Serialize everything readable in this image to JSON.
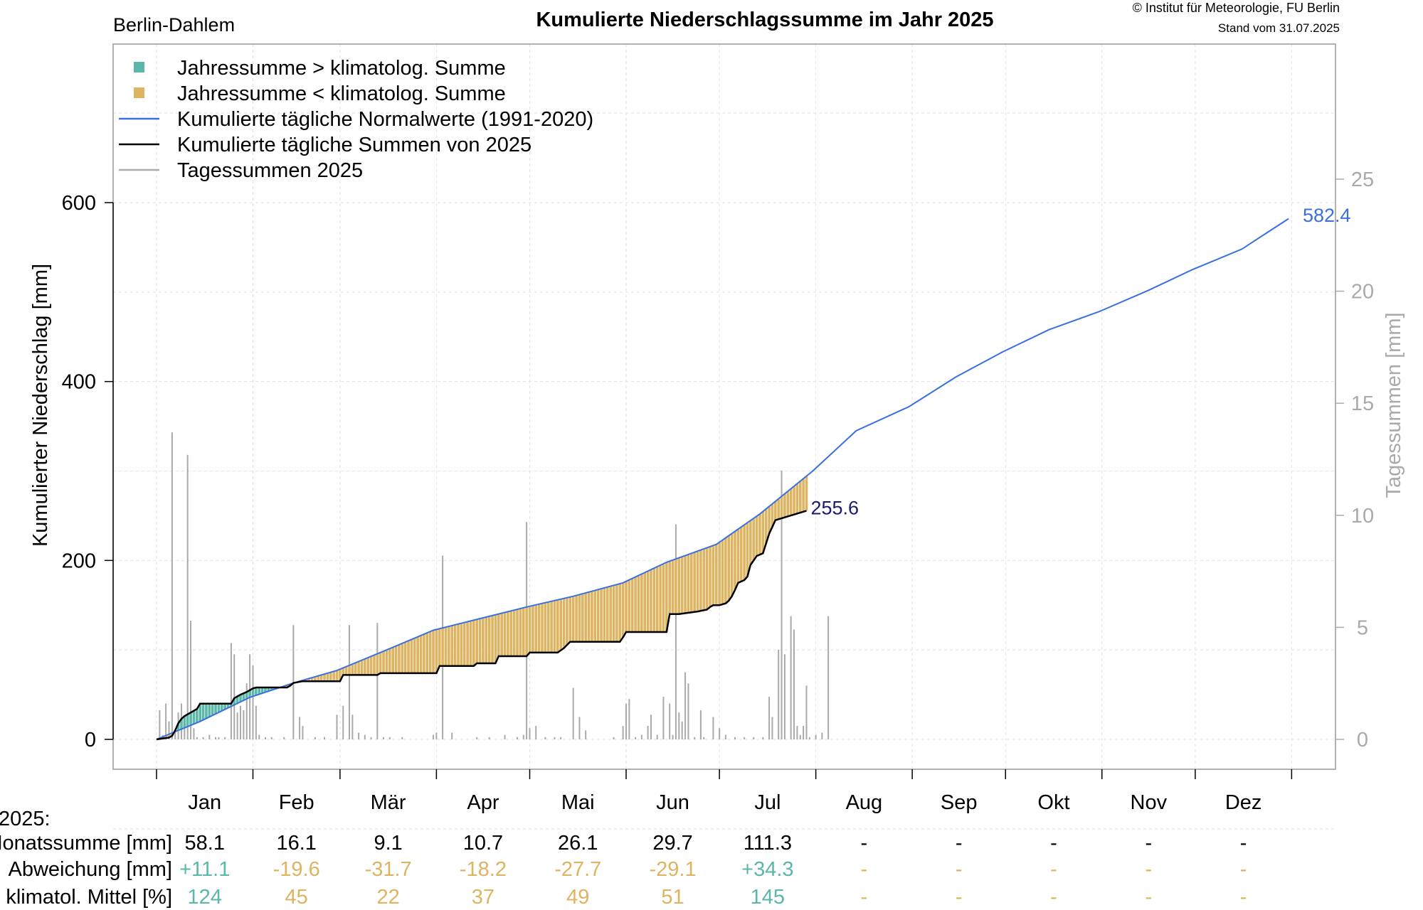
{
  "header": {
    "station": "Berlin-Dahlem",
    "title": "Kumulierte Niederschlagssumme im Jahr 2025",
    "copyright": "© Institut für Meteorologie, FU Berlin",
    "stand": "Stand vom 31.07.2025"
  },
  "colors": {
    "above": "#5bb8a8",
    "below": "#ddb462",
    "normal_line": "#3a6fe0",
    "actual_line": "#000000",
    "daily_bars": "#aaaaaa",
    "end_label_normal": "#3a6fe0",
    "end_label_actual": "#1a1a6e"
  },
  "chart_data": {
    "type": "line",
    "ylabel": "Kumulierter Niederschlag [mm]",
    "y2label": "Tagessummen [mm]",
    "ylim": [
      0,
      760
    ],
    "y2lim": [
      0,
      30.4
    ],
    "yticks": [
      0,
      200,
      400,
      600
    ],
    "y2ticks": [
      0,
      5,
      10,
      15,
      20,
      25
    ],
    "months": [
      "Jan",
      "Feb",
      "Mär",
      "Apr",
      "Mai",
      "Jun",
      "Jul",
      "Aug",
      "Sep",
      "Okt",
      "Nov",
      "Dez"
    ],
    "grid": true,
    "legend_position": "top-left",
    "legend": [
      {
        "label": "Jahressumme > klimatolog. Summe",
        "type": "square",
        "color": "#5bb8a8"
      },
      {
        "label": "Jahressumme < klimatolog. Summe",
        "type": "square",
        "color": "#ddb462"
      },
      {
        "label": "Kumulierte tägliche Normalwerte (1991-2020)",
        "type": "line",
        "color": "#3a6fe0"
      },
      {
        "label": "Kumulierte tägliche Summen von 2025",
        "type": "line",
        "color": "#000000"
      },
      {
        "label": "Tagessummen 2025",
        "type": "line",
        "color": "#aaaaaa"
      }
    ],
    "normal_series": {
      "name": "Kumulierte tägliche Normalwerte (1991-2020)",
      "x": [
        1,
        15,
        31,
        45,
        59,
        75,
        90,
        105,
        120,
        135,
        151,
        165,
        181,
        195,
        212,
        226,
        243,
        258,
        273,
        288,
        304,
        320,
        334,
        350,
        365
      ],
      "y": [
        0,
        20,
        47,
        63,
        77,
        100,
        122,
        135,
        148,
        160,
        175,
        198,
        218,
        252,
        300,
        345,
        372,
        405,
        433,
        458,
        478,
        502,
        525,
        548,
        582
      ]
    },
    "actual_series": {
      "name": "Kumulierte tägliche Summen von 2025",
      "x": [
        1,
        5,
        6,
        7,
        8,
        9,
        10,
        14,
        15,
        25,
        26,
        28,
        30,
        32,
        33,
        43,
        44,
        45,
        48,
        60,
        61,
        72,
        73,
        91,
        92,
        103,
        104,
        110,
        111,
        120,
        121,
        130,
        132,
        134,
        150,
        151,
        152,
        165,
        166,
        169,
        175,
        178,
        179,
        180,
        181,
        182,
        183,
        184,
        185,
        186,
        187,
        188,
        190,
        191,
        192,
        194,
        196,
        198,
        200,
        210
      ],
      "y": [
        0,
        2,
        4,
        10,
        18,
        23,
        26,
        34,
        40,
        40,
        46,
        50,
        53,
        57,
        58,
        58,
        60,
        63,
        65,
        65,
        72,
        72,
        74,
        74,
        82,
        82,
        85,
        85,
        93,
        93,
        97,
        97,
        102,
        109,
        109,
        114,
        120,
        120,
        140,
        140,
        143,
        145,
        148,
        150,
        150,
        150,
        151,
        152,
        155,
        160,
        167,
        175,
        178,
        182,
        195,
        205,
        208,
        230,
        245,
        255.6
      ]
    },
    "daily_bars": [
      {
        "x": 2,
        "v": 1.3
      },
      {
        "x": 3,
        "v": 0.2
      },
      {
        "x": 4,
        "v": 1.6
      },
      {
        "x": 5,
        "v": 0.8
      },
      {
        "x": 6,
        "v": 13.7
      },
      {
        "x": 7,
        "v": 0.4
      },
      {
        "x": 8,
        "v": 1.2
      },
      {
        "x": 9,
        "v": 1.6
      },
      {
        "x": 10,
        "v": 0.9
      },
      {
        "x": 11,
        "v": 12.7
      },
      {
        "x": 12,
        "v": 5.3
      },
      {
        "x": 13,
        "v": 0.5
      },
      {
        "x": 14,
        "v": 0.1
      },
      {
        "x": 16,
        "v": 0.1
      },
      {
        "x": 18,
        "v": 0.2
      },
      {
        "x": 20,
        "v": 0.1
      },
      {
        "x": 21,
        "v": 0.1
      },
      {
        "x": 23,
        "v": 0.1
      },
      {
        "x": 25,
        "v": 4.3
      },
      {
        "x": 26,
        "v": 3.8
      },
      {
        "x": 27,
        "v": 1.2
      },
      {
        "x": 28,
        "v": 1.5
      },
      {
        "x": 29,
        "v": 1.3
      },
      {
        "x": 30,
        "v": 2.5
      },
      {
        "x": 31,
        "v": 3.8
      },
      {
        "x": 32,
        "v": 3.3
      },
      {
        "x": 33,
        "v": 1.5
      },
      {
        "x": 34,
        "v": 0.2
      },
      {
        "x": 36,
        "v": 0.1
      },
      {
        "x": 38,
        "v": 0.1
      },
      {
        "x": 42,
        "v": 0.1
      },
      {
        "x": 45,
        "v": 5.1
      },
      {
        "x": 47,
        "v": 1.0
      },
      {
        "x": 48,
        "v": 0.6
      },
      {
        "x": 52,
        "v": 0.1
      },
      {
        "x": 55,
        "v": 0.1
      },
      {
        "x": 59,
        "v": 1.1
      },
      {
        "x": 61,
        "v": 1.5
      },
      {
        "x": 63,
        "v": 5.1
      },
      {
        "x": 64,
        "v": 1.1
      },
      {
        "x": 66,
        "v": 0.3
      },
      {
        "x": 68,
        "v": 0.2
      },
      {
        "x": 70,
        "v": 0.1
      },
      {
        "x": 72,
        "v": 5.2
      },
      {
        "x": 74,
        "v": 0.1
      },
      {
        "x": 76,
        "v": 0.1
      },
      {
        "x": 80,
        "v": 0.1
      },
      {
        "x": 90,
        "v": 0.2
      },
      {
        "x": 91,
        "v": 0.3
      },
      {
        "x": 93,
        "v": 8.2
      },
      {
        "x": 96,
        "v": 0.3
      },
      {
        "x": 104,
        "v": 0.1
      },
      {
        "x": 108,
        "v": 0.1
      },
      {
        "x": 113,
        "v": 0.2
      },
      {
        "x": 117,
        "v": 0.1
      },
      {
        "x": 119,
        "v": 0.2
      },
      {
        "x": 120,
        "v": 9.7
      },
      {
        "x": 121,
        "v": 0.5
      },
      {
        "x": 123,
        "v": 0.6
      },
      {
        "x": 126,
        "v": 0.1
      },
      {
        "x": 129,
        "v": 0.1
      },
      {
        "x": 131,
        "v": 0.1
      },
      {
        "x": 135,
        "v": 2.3
      },
      {
        "x": 137,
        "v": 1.0
      },
      {
        "x": 139,
        "v": 0.4
      },
      {
        "x": 148,
        "v": 0.1
      },
      {
        "x": 151,
        "v": 0.6
      },
      {
        "x": 152,
        "v": 1.6
      },
      {
        "x": 153,
        "v": 1.8
      },
      {
        "x": 155,
        "v": 0.1
      },
      {
        "x": 157,
        "v": 0.2
      },
      {
        "x": 159,
        "v": 0.6
      },
      {
        "x": 160,
        "v": 1.1
      },
      {
        "x": 162,
        "v": 0.2
      },
      {
        "x": 164,
        "v": 1.9
      },
      {
        "x": 166,
        "v": 1.6
      },
      {
        "x": 167,
        "v": 0.2
      },
      {
        "x": 168,
        "v": 9.6
      },
      {
        "x": 169,
        "v": 1.2
      },
      {
        "x": 170,
        "v": 0.8
      },
      {
        "x": 171,
        "v": 3.0
      },
      {
        "x": 172,
        "v": 2.5
      },
      {
        "x": 174,
        "v": 0.1
      },
      {
        "x": 176,
        "v": 1.3
      },
      {
        "x": 177,
        "v": 0.1
      },
      {
        "x": 180,
        "v": 1.0
      },
      {
        "x": 182,
        "v": 0.5
      },
      {
        "x": 184,
        "v": 0.2
      },
      {
        "x": 187,
        "v": 0.1
      },
      {
        "x": 190,
        "v": 0.1
      },
      {
        "x": 193,
        "v": 0.1
      },
      {
        "x": 196,
        "v": 0.1
      },
      {
        "x": 198,
        "v": 1.9
      },
      {
        "x": 199,
        "v": 1.0
      },
      {
        "x": 201,
        "v": 4.0
      },
      {
        "x": 202,
        "v": 12.0
      },
      {
        "x": 203,
        "v": 3.8
      },
      {
        "x": 205,
        "v": 5.5
      },
      {
        "x": 206,
        "v": 4.9
      },
      {
        "x": 207,
        "v": 0.6
      },
      {
        "x": 208,
        "v": 0.2
      },
      {
        "x": 209,
        "v": 0.6
      },
      {
        "x": 210,
        "v": 2.4
      },
      {
        "x": 211,
        "v": 0.1
      },
      {
        "x": 213,
        "v": 0.2
      },
      {
        "x": 215,
        "v": 0.3
      },
      {
        "x": 217,
        "v": 5.5
      }
    ],
    "end_label_normal": "582.4",
    "end_label_actual": "255.6"
  },
  "table": {
    "header": "2025:",
    "rows": [
      {
        "label": "Monatssumme [mm]",
        "color": "#000000",
        "values": [
          "58.1",
          "16.1",
          "9.1",
          "10.7",
          "26.1",
          "29.7",
          "111.3",
          "-",
          "-",
          "-",
          "-",
          "-"
        ]
      },
      {
        "label": "Abweichung [mm]",
        "color": "#ddb462",
        "values": [
          "+11.1",
          "-19.6",
          "-31.7",
          "-18.2",
          "-27.7",
          "-29.1",
          "+34.3",
          "-",
          "-",
          "-",
          "-",
          "-"
        ]
      },
      {
        "label": "% vom klimatol. Mittel [%]",
        "color": "#ddb462",
        "values": [
          "124",
          "45",
          "22",
          "37",
          "49",
          "51",
          "145",
          "-",
          "-",
          "-",
          "-",
          "-"
        ]
      }
    ],
    "positive_color": "#5bb8a8"
  }
}
